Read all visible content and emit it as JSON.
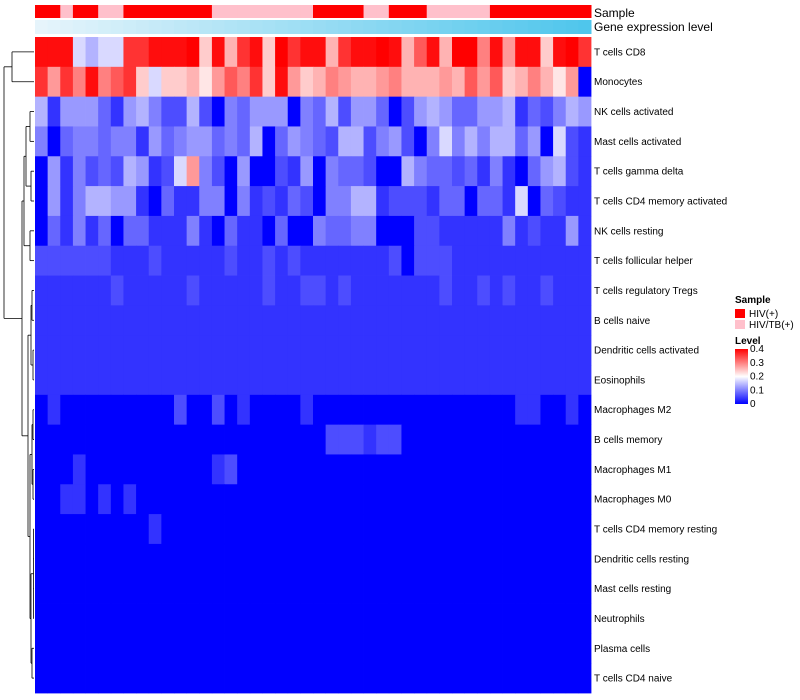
{
  "chart_data": {
    "type": "heatmap",
    "title": "",
    "annotation_tracks": [
      {
        "label": "Sample"
      },
      {
        "label": "Gene expression level"
      }
    ],
    "rows": [
      "T cells CD8",
      "Monocytes",
      "NK cells activated",
      "Mast cells activated",
      "T cells gamma delta",
      "T cells CD4 memory activated",
      "NK cells resting",
      "T cells follicular helper",
      "T cells regulatory  Tregs",
      "B cells naive",
      "Dendritic cells activated",
      "Eosinophils",
      "Macrophages M2",
      "B cells memory",
      "Macrophages M1",
      "Macrophages M0",
      "T cells CD4 memory resting",
      "Dendritic cells resting",
      "Mast cells resting",
      "Neutrophils",
      "Plasma cells",
      "T cells CD4 naive"
    ],
    "columns_count": 44,
    "sample_groups": "HHCHHCCHHHHHHHCCCCCCCCHHHHCCHHHCCCCCHHHHHHHH",
    "sample_legend": {
      "title": "Sample",
      "entries": [
        {
          "name": "HIV(+)",
          "code": "H",
          "color": "#ff0000"
        },
        {
          "name": "HIV/TB(+)",
          "code": "C",
          "color": "#ffc0cb"
        }
      ]
    },
    "expression_track": {
      "from_color": "#e6f4fb",
      "to_color": "#4fc6ec"
    },
    "color_scale": {
      "title": "Level",
      "min": 0,
      "max": 0.4,
      "ticks": [
        {
          "value": 0.4,
          "label": "0.4"
        },
        {
          "value": 0.3,
          "label": "0.3"
        },
        {
          "value": 0.2,
          "label": "0.2"
        },
        {
          "value": 0.1,
          "label": "0.1"
        },
        {
          "value": 0,
          "label": "0"
        }
      ],
      "stops": [
        {
          "value": 0,
          "color": "#0000ff"
        },
        {
          "value": 0.2,
          "color": "#ffffff"
        },
        {
          "value": 0.4,
          "color": "#ff0000"
        }
      ]
    },
    "value_rows": [
      "qqqhghhppqqqrkqlpqkrpqqlpqqrqloqlrrnqmqqkqrp",
      "pmpnqnopkhkkljmonpkqmklnmllmnlllmlomoklnljma",
      "gbfffdbfgeccgcaedfffaedgcffdacfgfddffgbdcegf",
      "eadeedeebfdeffdedgadfedcggcefcaehegeggdfahcb",
      "afbecdcgfbchmecafaacbfaeddcaageddcdbebadfgcb",
      "afbeggffbadbbeeaebcbdcaeeggbcccbddaddbhadcbb",
      "adbebdaddbbbebadbbadaaeddeeaaaccbbbbbebcbbfb",
      "ccccccbbbcbbbbbcbbcbcbbbbbbbcacccbbbbbbbbbbb",
      "bbbbbbcbbbbbcbbbbbcbbccbcbbbbbbbcbbcbcbbcbbb",
      "bbbbbbbbbbbbbbbbbbbbbbbbbbbbbbbbbbbbbbbbbbbb",
      "bbbbbbbbbbbbbbbbbbbbbbbbbbbbbbbbbbbbbbbbbbbb",
      "bbbbbbbbbbbbbbbbbbbbbbbbbbbbbbbbbbbbbbbbbbbb",
      "abaaaaaaaaacaacabaaaabaaaaaaaaaaaaaaaabbaaba",
      "aaaaaaaaaaaaaaaaaaaaaaacccbccaaaaaaaaaaaaaaa",
      "aaabaaaaaaaaaabcaaaaaaaaaaaaaaaaaaaaaaaaaaaa",
      "aabbababaaaaaaaaaaaaaaaaaaaaaaaaaaaaaaaaaaaa",
      "aaaaaaaaabaaaaaaaaaaaaaaaaaaaaaaaaaaaaaaaaaa",
      "aaaaaaaaaaaaaaaaaaaaaaaaaaaaaaaaaaaaaaaaaaaa",
      "aaaaaaaaaaaaaaaaaaaaaaaaaaaaaaaaaaaaaaaaaaaa",
      "aaaaaaaaaaaaaaaaaaaaaaaaaaaaaaaaaaaaaaaaaaaa",
      "aaaaaaaaaaaaaaaaaaaaaaaaaaaaaaaaaaaaaaaaaaaa",
      "aaaaaaaaaaaaaaaaaaaaaaaaaaaaaaaaaaaaaaaaaaaa"
    ],
    "value_levels": {
      "a": 0.0,
      "b": 0.04,
      "c": 0.06,
      "d": 0.08,
      "e": 0.1,
      "f": 0.12,
      "g": 0.14,
      "h": 0.17,
      "i": 0.2,
      "j": 0.22,
      "k": 0.24,
      "l": 0.26,
      "m": 0.28,
      "n": 0.3,
      "o": 0.33,
      "p": 0.36,
      "q": 0.39,
      "r": 0.4
    }
  }
}
